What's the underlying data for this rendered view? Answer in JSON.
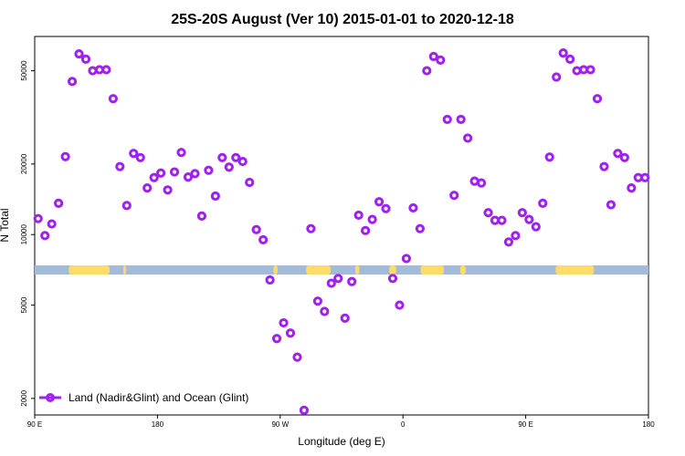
{
  "chart_data": {
    "type": "scatter",
    "title": "25S-20S August (Ver 10)   2015-01-01 to 2020-12-18",
    "xlabel": "Longitude (deg E)",
    "ylabel": "N Total",
    "y_scale": "log",
    "xlim": [
      90,
      540
    ],
    "ylim": [
      1700,
      70000
    ],
    "x_ticks": [
      {
        "value": 90,
        "label": "90 E"
      },
      {
        "value": 180,
        "label": "180"
      },
      {
        "value": 270,
        "label": "90 W"
      },
      {
        "value": 360,
        "label": "0"
      },
      {
        "value": 450,
        "label": "90 E"
      },
      {
        "value": 540,
        "label": "180"
      }
    ],
    "y_ticks": [
      {
        "value": 2000,
        "label": "2000"
      },
      {
        "value": 5000,
        "label": "5000"
      },
      {
        "value": 10000,
        "label": "10000"
      },
      {
        "value": 20000,
        "label": "20000"
      },
      {
        "value": 50000,
        "label": "50000"
      }
    ],
    "grid": false,
    "legend_position": "bottom-left",
    "series": [
      {
        "name": "Land (Nadir&Glint) and Ocean (Glint)",
        "color": "#a020f0",
        "x": [
          92.5,
          97.5,
          102.5,
          107.5,
          112.5,
          117.5,
          122.5,
          127.5,
          132.5,
          137.5,
          142.5,
          147.5,
          152.5,
          157.5,
          162.5,
          167.5,
          172.5,
          177.5,
          182.5,
          187.5,
          192.5,
          197.5,
          202.5,
          207.5,
          212.5,
          217.5,
          222.5,
          227.5,
          232.5,
          237.5,
          242.5,
          247.5,
          252.5,
          257.5,
          262.5,
          267.5,
          272.5,
          277.5,
          282.5,
          287.5,
          292.5,
          297.5,
          302.5,
          307.5,
          312.5,
          317.5,
          322.5,
          327.5,
          332.5,
          337.5,
          342.5,
          347.5,
          352.5,
          357.5,
          362.5,
          367.5,
          372.5,
          377.5,
          382.5,
          387.5,
          392.5,
          397.5,
          402.5,
          407.5,
          412.5,
          417.5,
          422.5,
          427.5,
          432.5,
          437.5,
          442.5,
          447.5,
          452.5,
          457.5,
          462.5,
          467.5,
          472.5,
          477.5,
          482.5,
          487.5,
          492.5,
          497.5,
          502.5,
          507.5,
          512.5,
          517.5,
          522.5,
          527.5,
          532.5,
          537.5
        ],
        "y": [
          11700,
          9900,
          11100,
          13600,
          21500,
          45000,
          59000,
          56000,
          50000,
          50500,
          50500,
          38000,
          19500,
          13300,
          22200,
          21300,
          15800,
          17500,
          18300,
          15500,
          18500,
          22400,
          17600,
          18200,
          12000,
          18800,
          14600,
          21300,
          19400,
          21300,
          20500,
          16700,
          10500,
          9500,
          6400,
          3600,
          4200,
          3800,
          3000,
          1780,
          10600,
          5200,
          4700,
          6200,
          6500,
          4400,
          6300,
          12100,
          10400,
          11600,
          13800,
          12900,
          6500,
          5000,
          7900,
          13000,
          10600,
          50000,
          57500,
          55500,
          31000,
          14700,
          31000,
          25800,
          16900,
          16600,
          12400,
          11500,
          11500,
          9300,
          9900,
          12400,
          11600,
          10800,
          13600,
          21400,
          47000,
          59500,
          56000,
          50000,
          50500,
          50500,
          38000,
          19500,
          13400,
          22200,
          21300,
          15800,
          17500,
          17500
        ]
      }
    ]
  },
  "map_strip": {
    "ocean_color": "#a3bad9",
    "land_color": "#fedc6a"
  },
  "colors": {
    "axis": "#000000",
    "text": "#000000",
    "series": "#a020f0"
  }
}
